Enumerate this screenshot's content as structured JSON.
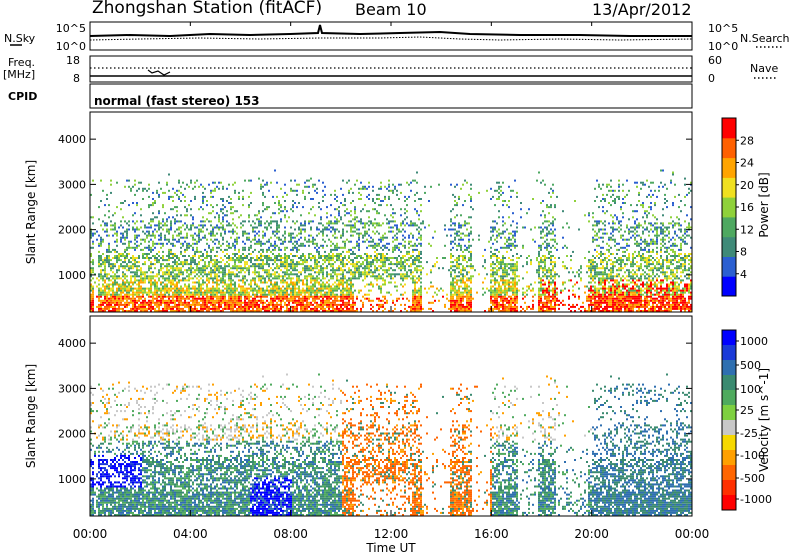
{
  "header": {
    "station": "Zhongshan Station (fitACF)",
    "beam": "Beam 10",
    "date": "13/Apr/2012"
  },
  "top_panels": {
    "nsky_label": "N.Sky",
    "nsky_ticks": [
      "10^5",
      "10^0"
    ],
    "nsearch_label": "N.Search",
    "nsearch_ticks": [
      "10^5",
      "10^0"
    ],
    "freq_label": "Freq.",
    "freq_unit": "[MHz]",
    "freq_ticks": [
      "18",
      "8"
    ],
    "nave_label": "Nave",
    "nave_ticks": [
      "60",
      "0"
    ],
    "cpid_label": "CPID",
    "cpid_text": "normal (fast stereo) 153"
  },
  "colors": {
    "power": [
      "#0000ff",
      "#2b5fd1",
      "#3f8a78",
      "#4ea860",
      "#8fd13a",
      "#f0e020",
      "#ffa400",
      "#ff6000",
      "#ff0000"
    ],
    "velocity": [
      "#0000ff",
      "#1a3ad8",
      "#2f6fb0",
      "#3a8a70",
      "#4faa5e",
      "#7ed040",
      "#c8c8c8",
      "#f6d800",
      "#ffa000",
      "#ff6500",
      "#ff3000",
      "#ff0000"
    ]
  },
  "chart_data": [
    {
      "type": "heatmap",
      "name": "power",
      "ylabel": "Slant Range [km]",
      "ylim": [
        180,
        4600
      ],
      "yticks": [
        "1000",
        "2000",
        "3000",
        "4000"
      ],
      "xlim": [
        0,
        24
      ],
      "colorbar_label": "Power [dB]",
      "colorbar_ticks": [
        "4",
        "8",
        "12",
        "16",
        "20",
        "24",
        "28"
      ],
      "colorbar_range": [
        0,
        32
      ]
    },
    {
      "type": "heatmap",
      "name": "velocity",
      "ylabel": "Slant Range [km]",
      "ylim": [
        180,
        4600
      ],
      "yticks": [
        "1000",
        "2000",
        "3000",
        "4000"
      ],
      "xlim": [
        0,
        24
      ],
      "xlabel": "Time UT",
      "xticks": [
        "00:00",
        "04:00",
        "08:00",
        "12:00",
        "16:00",
        "20:00",
        "00:00"
      ],
      "colorbar_label": "Velocity [m s^-1]",
      "colorbar_ticks": [
        "1000",
        "500",
        "100",
        "25",
        "-25",
        "-100",
        "-500",
        "-1000"
      ]
    }
  ]
}
